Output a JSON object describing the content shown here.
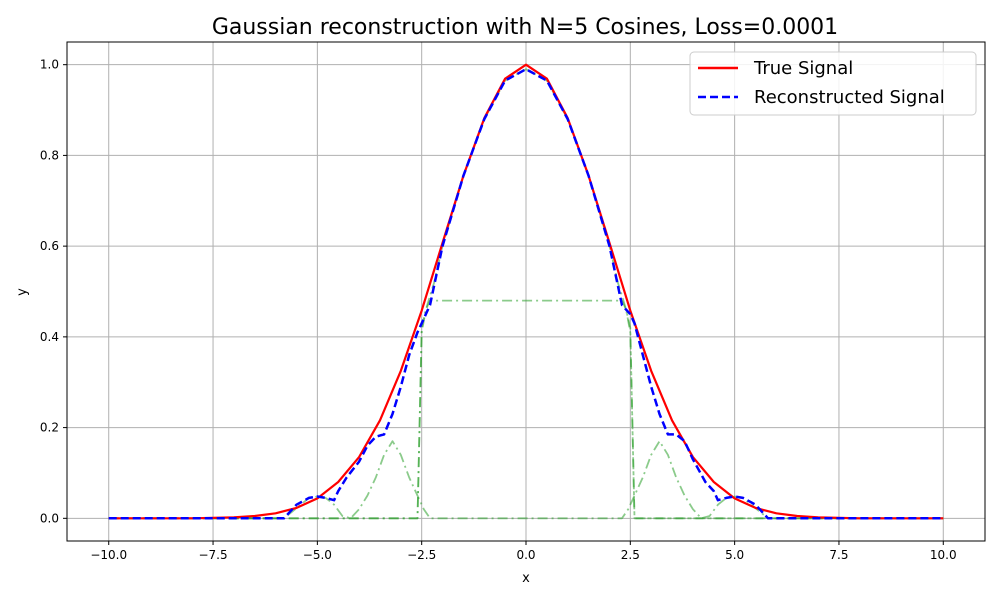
{
  "chart_data": {
    "type": "line",
    "title": "Gaussian reconstruction with N=5 Cosines, Loss=0.0001",
    "xlabel": "x",
    "ylabel": "y",
    "xlim": [
      -11.0,
      11.0
    ],
    "ylim": [
      -0.05,
      1.05
    ],
    "xticks": [
      -10.0,
      -7.5,
      -5.0,
      -2.5,
      0.0,
      2.5,
      5.0,
      7.5,
      10.0
    ],
    "xtick_labels": [
      "−10.0",
      "−7.5",
      "−5.0",
      "−2.5",
      "0.0",
      "2.5",
      "5.0",
      "7.5",
      "10.0"
    ],
    "yticks": [
      0.0,
      0.2,
      0.4,
      0.6,
      0.8,
      1.0
    ],
    "ytick_labels": [
      "0.0",
      "0.2",
      "0.4",
      "0.6",
      "0.8",
      "1.0"
    ],
    "grid": true,
    "legend_position": "top-right",
    "series": [
      {
        "name": "True Signal",
        "color": "#ff0000",
        "style": "solid",
        "x": [
          -10,
          -9,
          -8,
          -7,
          -6.5,
          -6,
          -5.5,
          -5,
          -4.5,
          -4,
          -3.5,
          -3,
          -2.5,
          -2,
          -1.5,
          -1,
          -0.5,
          0,
          0.5,
          1,
          1.5,
          2,
          2.5,
          3,
          3.5,
          4,
          4.5,
          5,
          5.5,
          6,
          6.5,
          7,
          8,
          9,
          10
        ],
        "y": [
          0.0,
          0.0,
          0.0,
          0.002,
          0.005,
          0.011,
          0.023,
          0.044,
          0.08,
          0.135,
          0.216,
          0.325,
          0.458,
          0.607,
          0.755,
          0.882,
          0.969,
          1.0,
          0.969,
          0.882,
          0.755,
          0.607,
          0.458,
          0.325,
          0.216,
          0.135,
          0.08,
          0.044,
          0.023,
          0.011,
          0.005,
          0.002,
          0.0,
          0.0,
          0.0
        ]
      },
      {
        "name": "Reconstructed Signal",
        "color": "#0000ff",
        "style": "dashed",
        "x": [
          -10,
          -6,
          -5.8,
          -5.5,
          -5.2,
          -5.0,
          -4.8,
          -4.6,
          -4.5,
          -4.3,
          -4.0,
          -3.8,
          -3.6,
          -3.4,
          -3.2,
          -3.0,
          -2.8,
          -2.6,
          -2.5,
          -2.3,
          -2.0,
          -1.5,
          -1.0,
          -0.5,
          0,
          0.5,
          1.0,
          1.5,
          2.0,
          2.3,
          2.5,
          2.6,
          2.8,
          3.0,
          3.2,
          3.4,
          3.6,
          3.8,
          4.0,
          4.3,
          4.5,
          4.6,
          4.8,
          5.0,
          5.2,
          5.5,
          5.8,
          6,
          10
        ],
        "y": [
          0.0,
          0.0,
          0.0,
          0.03,
          0.045,
          0.048,
          0.045,
          0.04,
          0.06,
          0.09,
          0.125,
          0.16,
          0.18,
          0.185,
          0.23,
          0.29,
          0.36,
          0.41,
          0.43,
          0.47,
          0.6,
          0.755,
          0.88,
          0.965,
          0.99,
          0.965,
          0.88,
          0.755,
          0.6,
          0.47,
          0.45,
          0.43,
          0.36,
          0.29,
          0.23,
          0.185,
          0.185,
          0.17,
          0.13,
          0.08,
          0.06,
          0.04,
          0.045,
          0.048,
          0.045,
          0.03,
          0.0,
          0.0,
          0.0
        ]
      },
      {
        "name": "",
        "color": "#2ca02c",
        "style": "dashdot",
        "x": [
          -10,
          -5.8,
          -5.4,
          -5.2,
          -5.0,
          -4.8,
          -4.6,
          -4.4,
          -4.2,
          -4.0,
          -3.8,
          -3.6,
          -3.4,
          -3.2,
          -3.0,
          -2.8,
          -2.6,
          -2.45,
          -2.3,
          -2.0,
          -1.5,
          -1.0,
          -0.5,
          0,
          0.5,
          1.0,
          1.5,
          2.0,
          2.3,
          2.45,
          2.6,
          2.8,
          3.0,
          3.2,
          3.4,
          3.6,
          3.8,
          4.0,
          4.2,
          4.4,
          4.6,
          4.8,
          5.0,
          5.2,
          5.4,
          5.8,
          10
        ],
        "y": [
          0.0,
          0.0,
          0.03,
          0.045,
          0.048,
          0.045,
          0.03,
          0.005,
          0.0,
          0.02,
          0.05,
          0.09,
          0.14,
          0.17,
          0.14,
          0.09,
          0.05,
          0.02,
          0.0,
          0.0,
          0.0,
          0.0,
          0.0,
          0.0,
          0.0,
          0.0,
          0.0,
          0.0,
          0.0,
          0.02,
          0.05,
          0.09,
          0.14,
          0.17,
          0.14,
          0.09,
          0.05,
          0.02,
          0.0,
          0.005,
          0.03,
          0.045,
          0.048,
          0.045,
          0.03,
          0.0,
          0.0
        ]
      },
      {
        "name": "",
        "color": "#2ca02c",
        "style": "dashdot",
        "x": [
          -10,
          -2.6,
          -2.5,
          -2.4,
          -2.3,
          -2.2,
          -2.0,
          -1.5,
          -1.0,
          -0.5,
          0,
          0.5,
          1.0,
          1.5,
          2.0,
          2.2,
          2.3,
          2.4,
          2.5,
          2.6,
          10
        ],
        "y": [
          0.0,
          0.0,
          0.41,
          0.46,
          0.49,
          0.52,
          0.6,
          0.755,
          0.88,
          0.965,
          0.99,
          0.965,
          0.88,
          0.755,
          0.6,
          0.52,
          0.49,
          0.46,
          0.41,
          0.0,
          0.0
        ]
      },
      {
        "name": "",
        "color": "#2ca02c",
        "style": "dashdot",
        "x": [
          -10,
          -2.6,
          -2.5,
          -2.45,
          -2.4,
          -2.35,
          -2.3,
          2.3,
          2.35,
          2.4,
          2.45,
          2.5,
          2.6,
          10
        ],
        "y": [
          0.0,
          0.0,
          0.42,
          0.44,
          0.46,
          0.47,
          0.48,
          0.48,
          0.47,
          0.46,
          0.44,
          0.42,
          0.0,
          0.0
        ]
      }
    ]
  }
}
